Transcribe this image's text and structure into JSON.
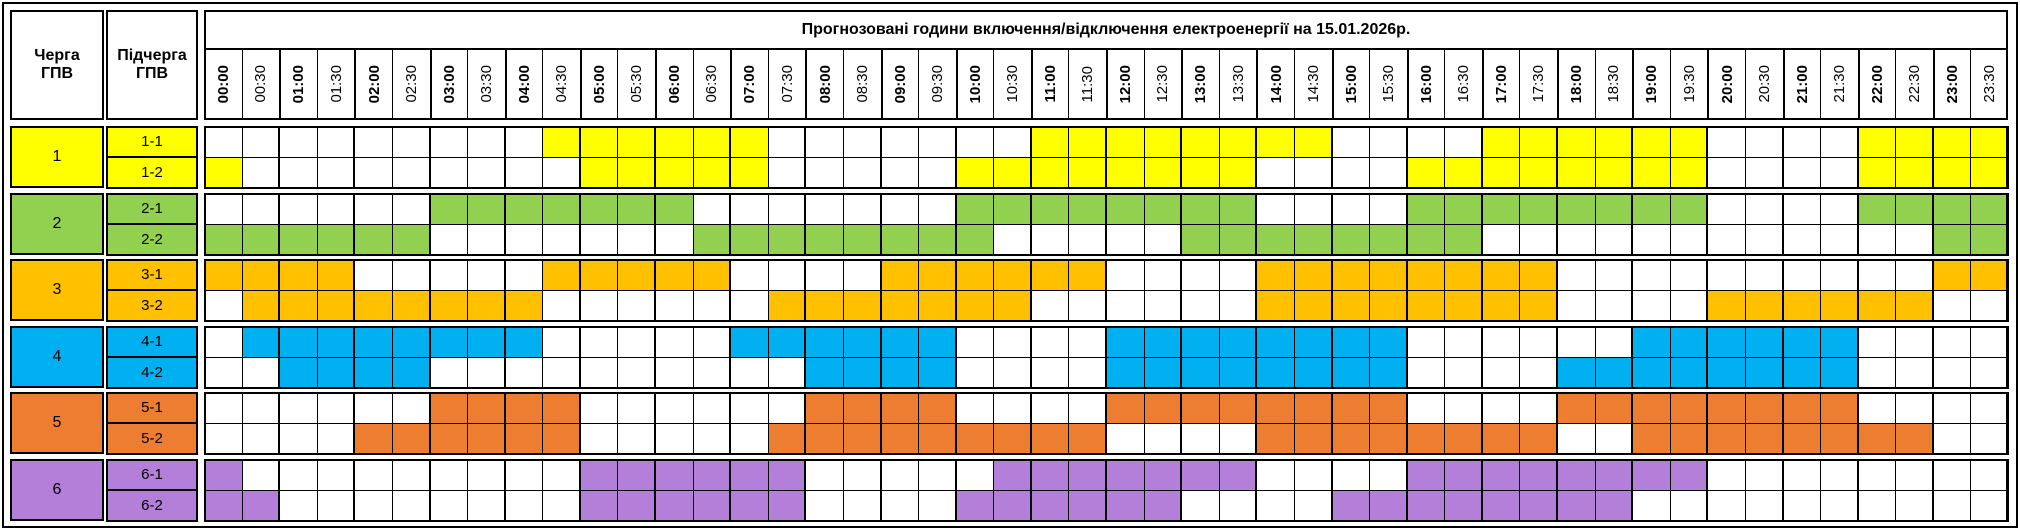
{
  "header": {
    "title": "Прогнозовані години включення/відключення електроенергії на 15.01.2026р.",
    "queue_label": "Черга ГПВ",
    "subqueue_label": "Підчерга ГПВ",
    "times": [
      "00:00",
      "00:30",
      "01:00",
      "01:30",
      "02:00",
      "02:30",
      "03:00",
      "03:30",
      "04:00",
      "04:30",
      "05:00",
      "05:30",
      "06:00",
      "06:30",
      "07:00",
      "07:30",
      "08:00",
      "08:30",
      "09:00",
      "09:30",
      "10:00",
      "10:30",
      "11:00",
      "11:30",
      "12:00",
      "12:30",
      "13:00",
      "13:30",
      "14:00",
      "14:30",
      "15:00",
      "15:30",
      "16:00",
      "16:30",
      "17:00",
      "17:30",
      "18:00",
      "18:30",
      "19:00",
      "19:30",
      "20:00",
      "20:30",
      "21:00",
      "21:30",
      "22:00",
      "22:30",
      "23:00",
      "23:30"
    ]
  },
  "groups": [
    {
      "label": "1",
      "color": "#ffff00",
      "subqueues": [
        {
          "label": "1-1",
          "slots": [
            0,
            0,
            0,
            0,
            0,
            0,
            0,
            0,
            0,
            1,
            1,
            1,
            1,
            1,
            1,
            0,
            0,
            0,
            0,
            0,
            0,
            0,
            1,
            1,
            1,
            1,
            1,
            1,
            1,
            1,
            0,
            0,
            0,
            0,
            1,
            1,
            1,
            1,
            1,
            1,
            0,
            0,
            0,
            0,
            1,
            1,
            1,
            1
          ]
        },
        {
          "label": "1-2",
          "slots": [
            1,
            0,
            0,
            0,
            0,
            0,
            0,
            0,
            0,
            0,
            1,
            1,
            1,
            1,
            1,
            0,
            0,
            0,
            0,
            0,
            1,
            1,
            1,
            1,
            1,
            1,
            1,
            1,
            0,
            0,
            0,
            0,
            1,
            1,
            1,
            1,
            1,
            1,
            1,
            1,
            0,
            0,
            0,
            0,
            1,
            1,
            1,
            1
          ]
        }
      ]
    },
    {
      "label": "2",
      "color": "#92d050",
      "subqueues": [
        {
          "label": "2-1",
          "slots": [
            0,
            0,
            0,
            0,
            0,
            0,
            1,
            1,
            1,
            1,
            1,
            1,
            1,
            0,
            0,
            0,
            0,
            0,
            0,
            0,
            1,
            1,
            1,
            1,
            1,
            1,
            1,
            1,
            0,
            0,
            0,
            0,
            1,
            1,
            1,
            1,
            1,
            1,
            1,
            1,
            0,
            0,
            0,
            0,
            1,
            1,
            1,
            1
          ]
        },
        {
          "label": "2-2",
          "slots": [
            1,
            1,
            1,
            1,
            1,
            1,
            0,
            0,
            0,
            0,
            0,
            0,
            0,
            1,
            1,
            1,
            1,
            1,
            1,
            1,
            1,
            0,
            0,
            0,
            0,
            0,
            1,
            1,
            1,
            1,
            1,
            1,
            1,
            1,
            0,
            0,
            0,
            0,
            0,
            0,
            0,
            0,
            0,
            0,
            0,
            0,
            1,
            1
          ]
        }
      ]
    },
    {
      "label": "3",
      "color": "#ffc000",
      "subqueues": [
        {
          "label": "3-1",
          "slots": [
            1,
            1,
            1,
            1,
            0,
            0,
            0,
            0,
            0,
            1,
            1,
            1,
            1,
            1,
            0,
            0,
            0,
            0,
            1,
            1,
            1,
            1,
            1,
            1,
            0,
            0,
            0,
            0,
            1,
            1,
            1,
            1,
            1,
            1,
            1,
            1,
            0,
            0,
            0,
            0,
            0,
            0,
            0,
            0,
            0,
            0,
            1,
            1
          ]
        },
        {
          "label": "3-2",
          "slots": [
            0,
            1,
            1,
            1,
            1,
            1,
            1,
            1,
            1,
            0,
            0,
            0,
            0,
            0,
            0,
            1,
            1,
            1,
            1,
            1,
            1,
            1,
            0,
            0,
            0,
            0,
            0,
            0,
            1,
            1,
            1,
            1,
            1,
            1,
            1,
            1,
            0,
            0,
            0,
            0,
            1,
            1,
            1,
            1,
            1,
            1,
            0,
            0
          ]
        }
      ]
    },
    {
      "label": "4",
      "color": "#00b0f0",
      "subqueues": [
        {
          "label": "4-1",
          "slots": [
            0,
            1,
            1,
            1,
            1,
            1,
            1,
            1,
            1,
            0,
            0,
            0,
            0,
            0,
            1,
            1,
            1,
            1,
            1,
            1,
            0,
            0,
            0,
            0,
            1,
            1,
            1,
            1,
            1,
            1,
            1,
            1,
            0,
            0,
            0,
            0,
            0,
            0,
            1,
            1,
            1,
            1,
            1,
            1,
            0,
            0,
            0,
            0
          ]
        },
        {
          "label": "4-2",
          "slots": [
            0,
            0,
            1,
            1,
            1,
            1,
            0,
            0,
            0,
            0,
            0,
            0,
            0,
            0,
            0,
            0,
            1,
            1,
            1,
            1,
            0,
            0,
            0,
            0,
            1,
            1,
            1,
            1,
            1,
            1,
            1,
            1,
            0,
            0,
            0,
            0,
            1,
            1,
            1,
            1,
            1,
            1,
            1,
            1,
            0,
            0,
            0,
            0
          ]
        }
      ]
    },
    {
      "label": "5",
      "color": "#ed7d31",
      "subqueues": [
        {
          "label": "5-1",
          "slots": [
            0,
            0,
            0,
            0,
            0,
            0,
            1,
            1,
            1,
            1,
            0,
            0,
            0,
            0,
            0,
            0,
            1,
            1,
            1,
            1,
            0,
            0,
            0,
            0,
            1,
            1,
            1,
            1,
            1,
            1,
            1,
            1,
            0,
            0,
            0,
            0,
            1,
            1,
            1,
            1,
            1,
            1,
            1,
            1,
            0,
            0,
            0,
            0
          ]
        },
        {
          "label": "5-2",
          "slots": [
            0,
            0,
            0,
            0,
            1,
            1,
            1,
            1,
            1,
            1,
            0,
            0,
            0,
            0,
            0,
            1,
            1,
            1,
            1,
            1,
            1,
            1,
            1,
            1,
            0,
            0,
            0,
            0,
            1,
            1,
            1,
            1,
            1,
            1,
            1,
            1,
            0,
            0,
            1,
            1,
            1,
            1,
            1,
            1,
            1,
            1,
            0,
            0
          ]
        }
      ]
    },
    {
      "label": "6",
      "color": "#b47fd8",
      "subqueues": [
        {
          "label": "6-1",
          "slots": [
            1,
            0,
            0,
            0,
            0,
            0,
            0,
            0,
            0,
            0,
            1,
            1,
            1,
            1,
            1,
            1,
            0,
            0,
            0,
            0,
            0,
            1,
            1,
            1,
            1,
            1,
            1,
            1,
            0,
            0,
            0,
            0,
            1,
            1,
            1,
            1,
            1,
            1,
            1,
            1,
            0,
            0,
            0,
            0,
            0,
            0,
            0,
            0
          ]
        },
        {
          "label": "6-2",
          "slots": [
            1,
            1,
            0,
            0,
            0,
            0,
            0,
            0,
            0,
            0,
            1,
            1,
            1,
            1,
            1,
            1,
            0,
            0,
            0,
            0,
            1,
            1,
            1,
            1,
            1,
            1,
            0,
            0,
            0,
            0,
            1,
            1,
            1,
            1,
            1,
            1,
            1,
            1,
            0,
            0,
            0,
            0,
            0,
            0,
            0,
            0,
            0,
            0
          ]
        }
      ]
    }
  ]
}
